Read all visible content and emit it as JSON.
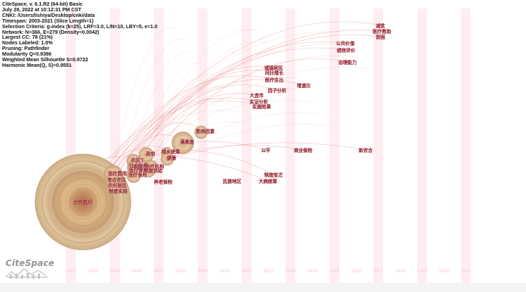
{
  "header": {
    "lines": [
      "CiteSpace, v. 6.1.R2 (64-bit) Basic",
      "July 28, 2022 at 10:12:31 PM CST",
      "CNKI: /Users/lishiya/Desktop/cnki/data",
      "Timespan: 2003-2021 (Slice Length=1)",
      "Selection Criteria: g-index (k=25), LRF=3.0, L/N=10, LBY=5, e=1.0",
      "Network: N=366, E=279 (Density=0.0042)",
      "Largest CC: 78 (21%)",
      "Nodes Labeled: 1.0%",
      "Pruning: Pathfinder",
      "Modularity Q=0.9386",
      "Weighted Mean Silhouette S=0.9722",
      "Harmonic Mean(Q, S)=0.9551"
    ]
  },
  "logo": {
    "text": "CiteSpace"
  },
  "colors": {
    "band": "#fde8ec",
    "year_label": "#f6c3cd",
    "keyword": "#8b0a1a",
    "node_outer": "#c9a47c",
    "node_inner": "#e2c49c",
    "link": "#e99a9a"
  },
  "chart_data": {
    "type": "timezone-network",
    "timespan": [
      2003,
      2021
    ],
    "years": [
      "2003",
      "2004",
      "2005",
      "2006",
      "2007",
      "2008",
      "2009",
      "2010",
      "2011",
      "2012",
      "2013",
      "2014",
      "2015",
      "2016",
      "2017",
      "2018",
      "2019",
      "2020",
      "2021"
    ],
    "nodes": [
      {
        "label": "合作医疗",
        "year": 2003,
        "size": 10
      },
      {
        "label": "医疗费用",
        "year": 2005,
        "size": 2
      },
      {
        "label": "参合农民",
        "year": 2005,
        "size": 1.5
      },
      {
        "label": "农村居民",
        "year": 2005,
        "size": 1.2
      },
      {
        "label": "制度实践",
        "year": 2005,
        "size": 1
      },
      {
        "label": "农民工",
        "year": 2006,
        "size": 1.5
      },
      {
        "label": "社会保障",
        "year": 2006,
        "size": 1.5
      },
      {
        "label": "医疗保障",
        "year": 2006,
        "size": 1.5
      },
      {
        "label": "医疗保险",
        "year": 2006,
        "size": 1.5
      },
      {
        "label": "农民",
        "year": 2006,
        "size": 1.2
      },
      {
        "label": "养老保险",
        "year": 2006,
        "size": 1
      },
      {
        "label": "政府",
        "year": 2007,
        "size": 1.6
      },
      {
        "label": "医疗机构",
        "year": 2007,
        "size": 1.6
      },
      {
        "label": "制度供给",
        "year": 2007,
        "size": 1.2
      },
      {
        "label": "城乡统筹",
        "year": 2008,
        "size": 1.2
      },
      {
        "label": "健康",
        "year": 2008,
        "size": 1.4
      },
      {
        "label": "满意度",
        "year": 2008,
        "size": 2.4
      },
      {
        "label": "影响因素",
        "year": 2009,
        "size": 1.4
      },
      {
        "label": "民族地区",
        "year": 2010,
        "size": 0.5
      },
      {
        "label": "大连市",
        "year": 2011,
        "size": 0.5
      },
      {
        "label": "实证分析",
        "year": 2011,
        "size": 0.5
      },
      {
        "label": "实施效果",
        "year": 2011,
        "size": 0.5
      },
      {
        "label": "公平",
        "year": 2012,
        "size": 0.5
      },
      {
        "label": "制度变迁",
        "year": 2012,
        "size": 0.5
      },
      {
        "label": "大病统筹",
        "year": 2012,
        "size": 0.5
      },
      {
        "label": "因子分析",
        "year": 2013,
        "size": 0.5
      },
      {
        "label": "城镇居民",
        "year": 2013,
        "size": 0.5
      },
      {
        "label": "同比增长",
        "year": 2013,
        "size": 0.5
      },
      {
        "label": "医疗支出",
        "year": 2013,
        "size": 0.5
      },
      {
        "label": "增速比",
        "year": 2014,
        "size": 0.5
      },
      {
        "label": "商业保险",
        "year": 2014,
        "size": 0.5
      },
      {
        "label": "公共价值",
        "year": 2015,
        "size": 0.5
      },
      {
        "label": "绩效评价",
        "year": 2015,
        "size": 0.5
      },
      {
        "label": "治理能力",
        "year": 2015,
        "size": 0.5
      },
      {
        "label": "新农合",
        "year": 2016,
        "size": 0.5
      },
      {
        "label": "减贫",
        "year": 2017,
        "size": 0.5
      },
      {
        "label": "医疗救助",
        "year": 2017,
        "size": 0.5
      },
      {
        "label": "贫困",
        "year": 2017,
        "size": 0.5
      }
    ]
  }
}
